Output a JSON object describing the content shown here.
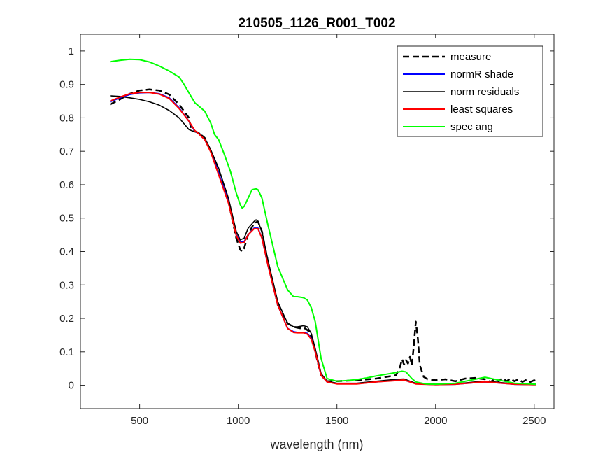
{
  "chart_data": {
    "type": "line",
    "title": "210505_1126_R001_T002",
    "xlabel": "wavelength (nm)",
    "ylabel": "",
    "xlim": [
      200,
      2600
    ],
    "ylim": [
      -0.07,
      1.05
    ],
    "xticks": [
      500,
      1000,
      1500,
      2000,
      2500
    ],
    "yticks": [
      0,
      0.1,
      0.2,
      0.3,
      0.4,
      0.5,
      0.6,
      0.7,
      0.8,
      0.9,
      1
    ],
    "grid": false,
    "legend": "top-right",
    "series": [
      {
        "name": "measure",
        "color": "#000000",
        "style": "dashed",
        "x": [
          350,
          400,
          450,
          500,
          550,
          600,
          650,
          700,
          750,
          760,
          780,
          800,
          830,
          860,
          900,
          950,
          990,
          1010,
          1020,
          1030,
          1050,
          1080,
          1100,
          1120,
          1150,
          1200,
          1250,
          1280,
          1300,
          1320,
          1340,
          1360,
          1380,
          1400,
          1420,
          1450,
          1500,
          1600,
          1700,
          1750,
          1800,
          1820,
          1830,
          1840,
          1850,
          1860,
          1870,
          1880,
          1890,
          1900,
          1910,
          1920,
          1940,
          1960,
          2000,
          2050,
          2100,
          2150,
          2200,
          2250,
          2280,
          2300,
          2320,
          2340,
          2360,
          2380,
          2400,
          2420,
          2440,
          2460,
          2480,
          2500,
          2510
        ],
        "y": [
          0.84,
          0.855,
          0.872,
          0.882,
          0.885,
          0.882,
          0.87,
          0.84,
          0.8,
          0.77,
          0.76,
          0.755,
          0.74,
          0.7,
          0.64,
          0.55,
          0.44,
          0.405,
          0.4,
          0.41,
          0.45,
          0.485,
          0.49,
          0.46,
          0.37,
          0.24,
          0.185,
          0.175,
          0.172,
          0.17,
          0.17,
          0.16,
          0.13,
          0.075,
          0.03,
          0.012,
          0.012,
          0.015,
          0.02,
          0.025,
          0.03,
          0.055,
          0.078,
          0.062,
          0.075,
          0.065,
          0.085,
          0.06,
          0.12,
          0.19,
          0.14,
          0.06,
          0.025,
          0.018,
          0.015,
          0.018,
          0.012,
          0.02,
          0.022,
          0.018,
          0.01,
          0.02,
          0.012,
          0.022,
          0.012,
          0.02,
          0.012,
          0.018,
          0.01,
          0.016,
          0.01,
          0.015,
          0.012
        ]
      },
      {
        "name": "normR shade",
        "color": "#0000ff",
        "style": "solid",
        "x": [
          350,
          400,
          450,
          500,
          550,
          600,
          650,
          700,
          750,
          780,
          800,
          830,
          860,
          900,
          950,
          990,
          1010,
          1030,
          1050,
          1080,
          1100,
          1120,
          1150,
          1200,
          1250,
          1280,
          1300,
          1330,
          1350,
          1370,
          1390,
          1420,
          1450,
          1500,
          1600,
          1700,
          1800,
          1840,
          1870,
          1900,
          2000,
          2100,
          2200,
          2250,
          2300,
          2400,
          2500,
          2510
        ],
        "y": [
          0.848,
          0.86,
          0.87,
          0.875,
          0.876,
          0.872,
          0.86,
          0.83,
          0.79,
          0.76,
          0.752,
          0.735,
          0.7,
          0.635,
          0.55,
          0.45,
          0.43,
          0.43,
          0.45,
          0.47,
          0.47,
          0.44,
          0.36,
          0.24,
          0.17,
          0.16,
          0.158,
          0.158,
          0.155,
          0.14,
          0.1,
          0.03,
          0.01,
          0.005,
          0.005,
          0.01,
          0.015,
          0.016,
          0.01,
          0.005,
          0.002,
          0.003,
          0.008,
          0.01,
          0.008,
          0.003,
          0.002,
          0.002
        ]
      },
      {
        "name": "norm residuals",
        "color": "#000000",
        "style": "solid",
        "x": [
          350,
          400,
          450,
          500,
          550,
          600,
          650,
          700,
          750,
          780,
          800,
          830,
          860,
          900,
          950,
          990,
          1010,
          1030,
          1050,
          1080,
          1090,
          1100,
          1120,
          1150,
          1200,
          1250,
          1280,
          1300,
          1330,
          1350,
          1370,
          1390,
          1420,
          1450,
          1500,
          1600,
          1700,
          1800,
          1840,
          1870,
          1900,
          2000,
          2100,
          2200,
          2250,
          2300,
          2400,
          2500,
          2510
        ],
        "y": [
          0.866,
          0.864,
          0.86,
          0.855,
          0.848,
          0.838,
          0.822,
          0.8,
          0.765,
          0.758,
          0.755,
          0.74,
          0.705,
          0.65,
          0.56,
          0.46,
          0.435,
          0.44,
          0.47,
          0.49,
          0.495,
          0.49,
          0.46,
          0.375,
          0.25,
          0.185,
          0.175,
          0.175,
          0.178,
          0.175,
          0.155,
          0.11,
          0.035,
          0.012,
          0.006,
          0.006,
          0.012,
          0.018,
          0.019,
          0.012,
          0.006,
          0.003,
          0.004,
          0.01,
          0.012,
          0.01,
          0.004,
          0.003,
          0.003
        ]
      },
      {
        "name": "least squares",
        "color": "#ff0000",
        "style": "solid",
        "x": [
          350,
          400,
          450,
          500,
          550,
          600,
          650,
          700,
          750,
          780,
          800,
          830,
          860,
          900,
          950,
          990,
          1010,
          1030,
          1050,
          1080,
          1100,
          1120,
          1150,
          1200,
          1250,
          1280,
          1300,
          1330,
          1350,
          1370,
          1390,
          1420,
          1450,
          1500,
          1600,
          1700,
          1800,
          1840,
          1870,
          1900,
          2000,
          2100,
          2200,
          2250,
          2300,
          2400,
          2500,
          2510
        ],
        "y": [
          0.85,
          0.862,
          0.872,
          0.876,
          0.876,
          0.871,
          0.858,
          0.828,
          0.79,
          0.762,
          0.752,
          0.735,
          0.698,
          0.63,
          0.545,
          0.448,
          0.425,
          0.427,
          0.45,
          0.468,
          0.468,
          0.44,
          0.36,
          0.24,
          0.17,
          0.158,
          0.157,
          0.157,
          0.153,
          0.138,
          0.1,
          0.03,
          0.01,
          0.004,
          0.004,
          0.01,
          0.014,
          0.016,
          0.01,
          0.004,
          0.002,
          0.003,
          0.008,
          0.01,
          0.008,
          0.003,
          0.002,
          0.002
        ]
      },
      {
        "name": "spec ang",
        "color": "#00ff00",
        "style": "solid",
        "x": [
          350,
          400,
          450,
          500,
          550,
          600,
          650,
          700,
          720,
          750,
          780,
          800,
          830,
          860,
          880,
          900,
          930,
          960,
          990,
          1010,
          1020,
          1030,
          1050,
          1070,
          1090,
          1100,
          1120,
          1150,
          1200,
          1250,
          1280,
          1300,
          1330,
          1350,
          1370,
          1390,
          1420,
          1450,
          1500,
          1550,
          1600,
          1650,
          1700,
          1750,
          1800,
          1830,
          1850,
          1880,
          1900,
          1950,
          2000,
          2100,
          2200,
          2250,
          2300,
          2400,
          2500,
          2510
        ],
        "y": [
          0.968,
          0.972,
          0.975,
          0.974,
          0.967,
          0.955,
          0.94,
          0.922,
          0.905,
          0.875,
          0.845,
          0.835,
          0.82,
          0.785,
          0.75,
          0.735,
          0.69,
          0.64,
          0.575,
          0.54,
          0.53,
          0.535,
          0.56,
          0.585,
          0.588,
          0.585,
          0.56,
          0.48,
          0.355,
          0.285,
          0.265,
          0.265,
          0.262,
          0.255,
          0.232,
          0.19,
          0.08,
          0.02,
          0.012,
          0.014,
          0.017,
          0.022,
          0.028,
          0.033,
          0.038,
          0.042,
          0.04,
          0.02,
          0.01,
          0.004,
          0.003,
          0.006,
          0.018,
          0.024,
          0.018,
          0.006,
          0.003,
          0.003
        ]
      }
    ]
  }
}
